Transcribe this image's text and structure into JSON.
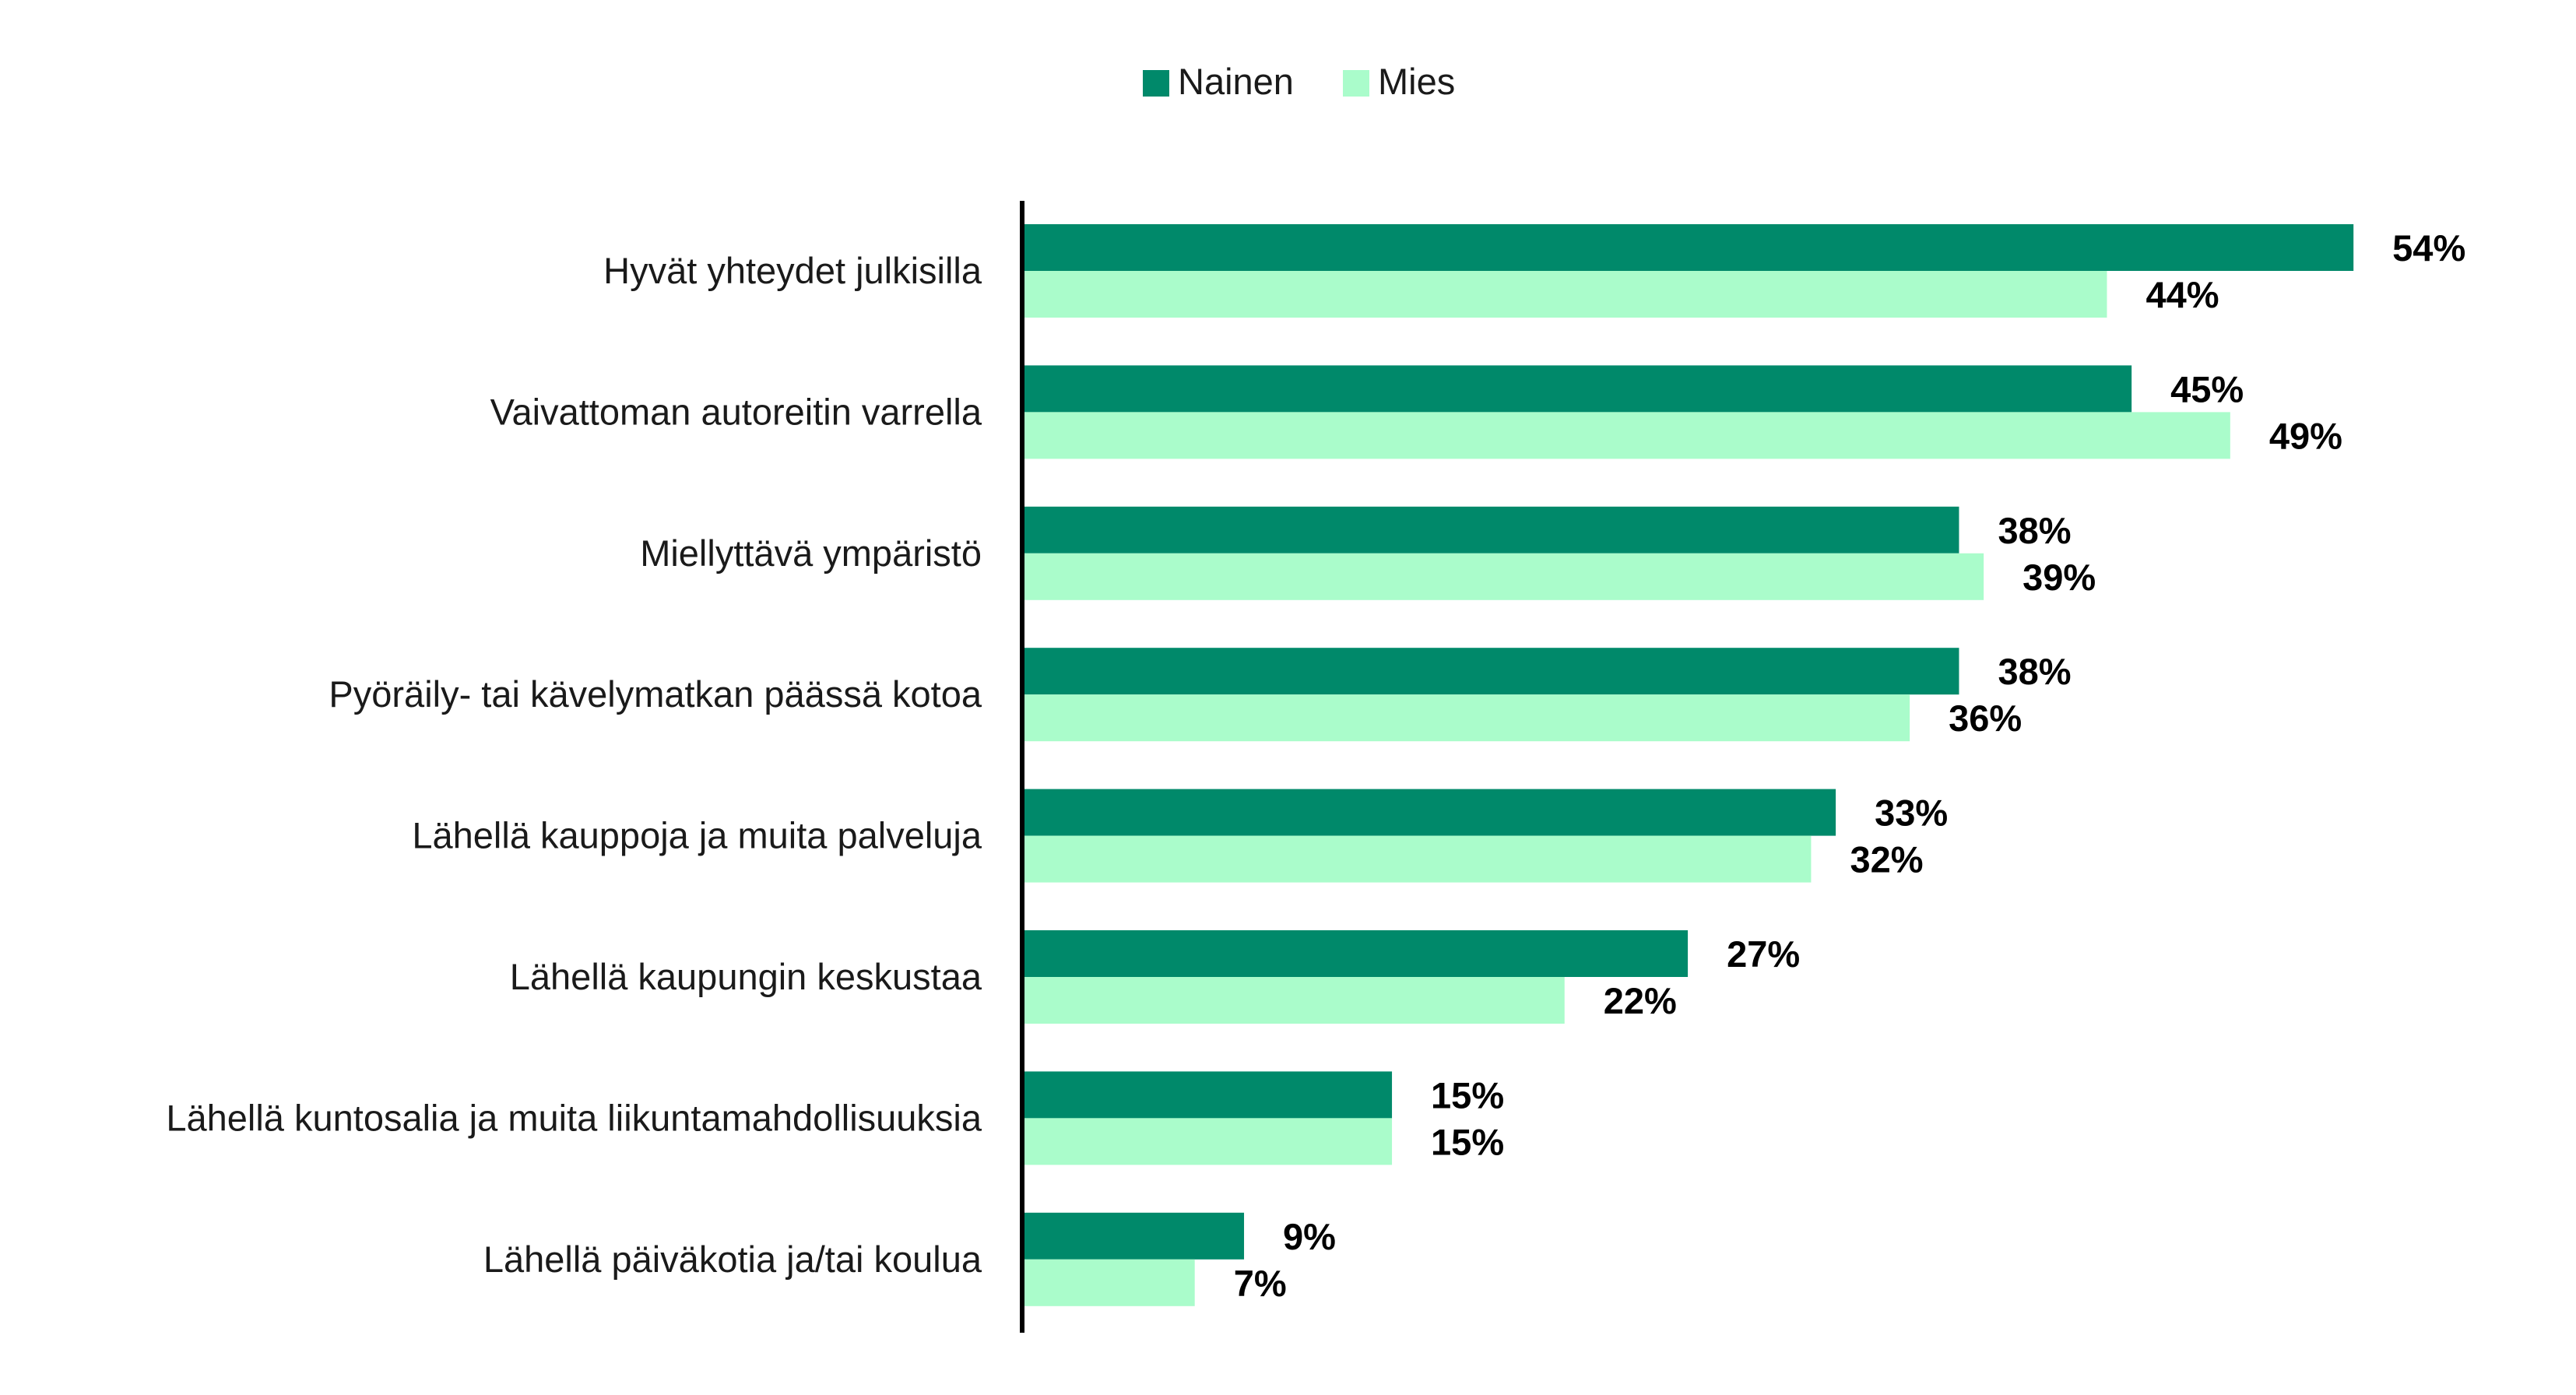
{
  "chart_data": {
    "type": "bar",
    "orientation": "horizontal",
    "categories": [
      "Hyvät yhteydet julkisilla",
      "Vaivattoman autoreitin varrella",
      "Miellyttävä ympäristö",
      "Pyöräily- tai kävelymatkan päässä kotoa",
      "Lähellä kauppoja ja muita palveluja",
      "Lähellä kaupungin keskustaa",
      "Lähellä kuntosalia ja muita liikuntamahdollisuuksia",
      "Lähellä päiväkotia ja/tai koulua"
    ],
    "series": [
      {
        "name": "Nainen",
        "color": "#00896A",
        "values": [
          54,
          45,
          38,
          38,
          33,
          27,
          15,
          9
        ],
        "labels": [
          "54%",
          "45%",
          "38%",
          "38%",
          "33%",
          "27%",
          "15%",
          "9%"
        ]
      },
      {
        "name": "Mies",
        "color": "#AAFCCB",
        "values": [
          44,
          49,
          39,
          36,
          32,
          22,
          15,
          7
        ],
        "labels": [
          "44%",
          "49%",
          "39%",
          "36%",
          "32%",
          "22%",
          "15%",
          "7%"
        ]
      }
    ],
    "unit": "%",
    "xlim": [
      0,
      60
    ],
    "legend_position": "top-center",
    "grid": false
  }
}
